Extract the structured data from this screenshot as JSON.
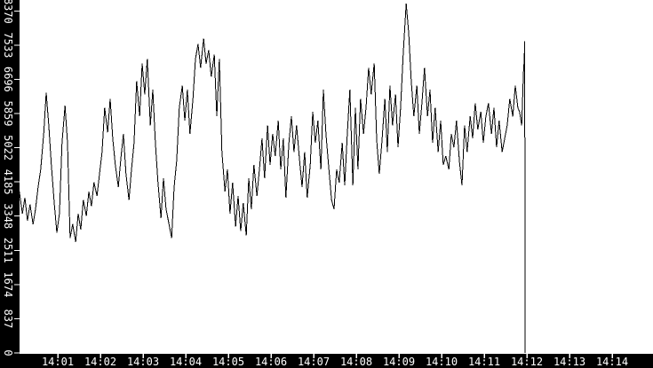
{
  "colors": {
    "background": "#ffffff",
    "axis_strip": "#000000",
    "axis_text": "#ffffff",
    "line": "#000000"
  },
  "chart_data": {
    "type": "line",
    "title": "",
    "xlabel": "",
    "ylabel": "",
    "grid": false,
    "legend": "none",
    "x_axis": {
      "unit": "time",
      "tick_labels": [
        "14:01",
        "14:02",
        "14:03",
        "14:04",
        "14:05",
        "14:06",
        "14:07",
        "14:08",
        "14:09",
        "14:10",
        "14:11",
        "14:12",
        "14:13",
        "14:14"
      ],
      "first_tick_minute": 1,
      "minutes_per_tick": 1
    },
    "y_axis": {
      "min": 0,
      "max": 8370,
      "tick_step": 837,
      "tick_labels": [
        "0",
        "837",
        "1674",
        "2511",
        "3348",
        "4185",
        "5022",
        "5859",
        "6696",
        "7533",
        "8370"
      ]
    },
    "series": [
      {
        "name": "value",
        "color": "#000000",
        "points": [
          [
            0.1,
            3950
          ],
          [
            0.17,
            3410
          ],
          [
            0.23,
            3800
          ],
          [
            0.29,
            3240
          ],
          [
            0.35,
            3630
          ],
          [
            0.42,
            3150
          ],
          [
            0.48,
            3520
          ],
          [
            0.54,
            4060
          ],
          [
            0.6,
            4490
          ],
          [
            0.67,
            5360
          ],
          [
            0.73,
            6370
          ],
          [
            0.79,
            5570
          ],
          [
            0.85,
            4600
          ],
          [
            0.92,
            3630
          ],
          [
            0.98,
            2940
          ],
          [
            1.04,
            3410
          ],
          [
            1.1,
            5140
          ],
          [
            1.17,
            6050
          ],
          [
            1.23,
            5140
          ],
          [
            1.29,
            2810
          ],
          [
            1.35,
            3150
          ],
          [
            1.42,
            2720
          ],
          [
            1.48,
            3410
          ],
          [
            1.54,
            3020
          ],
          [
            1.6,
            3740
          ],
          [
            1.67,
            3350
          ],
          [
            1.73,
            3950
          ],
          [
            1.79,
            3590
          ],
          [
            1.85,
            4170
          ],
          [
            1.92,
            3840
          ],
          [
            1.98,
            4380
          ],
          [
            2.04,
            4920
          ],
          [
            2.1,
            6000
          ],
          [
            2.17,
            5400
          ],
          [
            2.23,
            6220
          ],
          [
            2.29,
            5250
          ],
          [
            2.35,
            4600
          ],
          [
            2.42,
            4060
          ],
          [
            2.48,
            4750
          ],
          [
            2.54,
            5360
          ],
          [
            2.6,
            4380
          ],
          [
            2.67,
            3740
          ],
          [
            2.73,
            4490
          ],
          [
            2.79,
            5140
          ],
          [
            2.85,
            6650
          ],
          [
            2.92,
            5790
          ],
          [
            2.98,
            7080
          ],
          [
            3.04,
            6330
          ],
          [
            3.1,
            7190
          ],
          [
            3.17,
            5570
          ],
          [
            3.23,
            6440
          ],
          [
            3.29,
            5140
          ],
          [
            3.35,
            4170
          ],
          [
            3.42,
            3300
          ],
          [
            3.48,
            4280
          ],
          [
            3.54,
            3520
          ],
          [
            3.6,
            3200
          ],
          [
            3.67,
            2810
          ],
          [
            3.73,
            4060
          ],
          [
            3.79,
            4710
          ],
          [
            3.85,
            6000
          ],
          [
            3.92,
            6540
          ],
          [
            3.98,
            5680
          ],
          [
            4.04,
            6440
          ],
          [
            4.1,
            5360
          ],
          [
            4.17,
            6220
          ],
          [
            4.23,
            7190
          ],
          [
            4.29,
            7560
          ],
          [
            4.35,
            6980
          ],
          [
            4.42,
            7690
          ],
          [
            4.48,
            7080
          ],
          [
            4.54,
            7410
          ],
          [
            4.6,
            6760
          ],
          [
            4.67,
            7300
          ],
          [
            4.73,
            5790
          ],
          [
            4.79,
            7190
          ],
          [
            4.85,
            4920
          ],
          [
            4.92,
            3950
          ],
          [
            4.98,
            4490
          ],
          [
            5.04,
            3410
          ],
          [
            5.1,
            4170
          ],
          [
            5.17,
            3090
          ],
          [
            5.23,
            3840
          ],
          [
            5.29,
            2980
          ],
          [
            5.35,
            3670
          ],
          [
            5.42,
            2870
          ],
          [
            5.48,
            4280
          ],
          [
            5.54,
            3520
          ],
          [
            5.6,
            4600
          ],
          [
            5.67,
            3840
          ],
          [
            5.73,
            4490
          ],
          [
            5.79,
            5250
          ],
          [
            5.85,
            4280
          ],
          [
            5.92,
            5570
          ],
          [
            5.98,
            4600
          ],
          [
            6.04,
            5360
          ],
          [
            6.1,
            4820
          ],
          [
            6.17,
            5680
          ],
          [
            6.23,
            4490
          ],
          [
            6.29,
            5250
          ],
          [
            6.35,
            3800
          ],
          [
            6.42,
            5140
          ],
          [
            6.48,
            5790
          ],
          [
            6.54,
            4920
          ],
          [
            6.6,
            5570
          ],
          [
            6.67,
            4710
          ],
          [
            6.73,
            4060
          ],
          [
            6.79,
            4920
          ],
          [
            6.85,
            3800
          ],
          [
            6.92,
            4600
          ],
          [
            6.98,
            5900
          ],
          [
            7.04,
            5140
          ],
          [
            7.1,
            5680
          ],
          [
            7.17,
            4490
          ],
          [
            7.23,
            6440
          ],
          [
            7.29,
            5360
          ],
          [
            7.35,
            4600
          ],
          [
            7.42,
            3740
          ],
          [
            7.48,
            3520
          ],
          [
            7.54,
            4490
          ],
          [
            7.6,
            4170
          ],
          [
            7.67,
            5140
          ],
          [
            7.73,
            4100
          ],
          [
            7.79,
            5360
          ],
          [
            7.85,
            6440
          ],
          [
            7.92,
            4100
          ],
          [
            7.98,
            6000
          ],
          [
            8.04,
            4490
          ],
          [
            8.1,
            6220
          ],
          [
            8.17,
            5360
          ],
          [
            8.23,
            6000
          ],
          [
            8.29,
            6980
          ],
          [
            8.35,
            6330
          ],
          [
            8.42,
            7080
          ],
          [
            8.48,
            5210
          ],
          [
            8.54,
            4380
          ],
          [
            8.6,
            5140
          ],
          [
            8.67,
            6220
          ],
          [
            8.73,
            4920
          ],
          [
            8.79,
            6540
          ],
          [
            8.85,
            5570
          ],
          [
            8.92,
            6330
          ],
          [
            8.98,
            5030
          ],
          [
            9.04,
            6000
          ],
          [
            9.1,
            7300
          ],
          [
            9.17,
            8550
          ],
          [
            9.23,
            7840
          ],
          [
            9.29,
            6650
          ],
          [
            9.35,
            5790
          ],
          [
            9.42,
            6540
          ],
          [
            9.48,
            5360
          ],
          [
            9.54,
            6110
          ],
          [
            9.6,
            6980
          ],
          [
            9.67,
            5790
          ],
          [
            9.73,
            6440
          ],
          [
            9.79,
            5140
          ],
          [
            9.85,
            6000
          ],
          [
            9.92,
            4920
          ],
          [
            9.98,
            5680
          ],
          [
            10.04,
            4600
          ],
          [
            10.1,
            4820
          ],
          [
            10.17,
            4490
          ],
          [
            10.23,
            5360
          ],
          [
            10.29,
            5030
          ],
          [
            10.35,
            5680
          ],
          [
            10.42,
            4670
          ],
          [
            10.48,
            4100
          ],
          [
            10.54,
            5570
          ],
          [
            10.6,
            4920
          ],
          [
            10.67,
            5790
          ],
          [
            10.73,
            5250
          ],
          [
            10.79,
            6110
          ],
          [
            10.85,
            5470
          ],
          [
            10.92,
            5900
          ],
          [
            10.98,
            5140
          ],
          [
            11.04,
            5790
          ],
          [
            11.1,
            6110
          ],
          [
            11.17,
            5360
          ],
          [
            11.23,
            6000
          ],
          [
            11.29,
            5030
          ],
          [
            11.35,
            5680
          ],
          [
            11.42,
            4920
          ],
          [
            11.54,
            5570
          ],
          [
            11.6,
            6220
          ],
          [
            11.67,
            5790
          ],
          [
            11.73,
            6540
          ],
          [
            11.79,
            6000
          ],
          [
            11.83,
            5900
          ],
          [
            11.88,
            5570
          ],
          [
            11.92,
            6870
          ],
          [
            11.94,
            7190
          ],
          [
            11.95,
            7630
          ],
          [
            11.96,
            0
          ]
        ]
      }
    ]
  }
}
